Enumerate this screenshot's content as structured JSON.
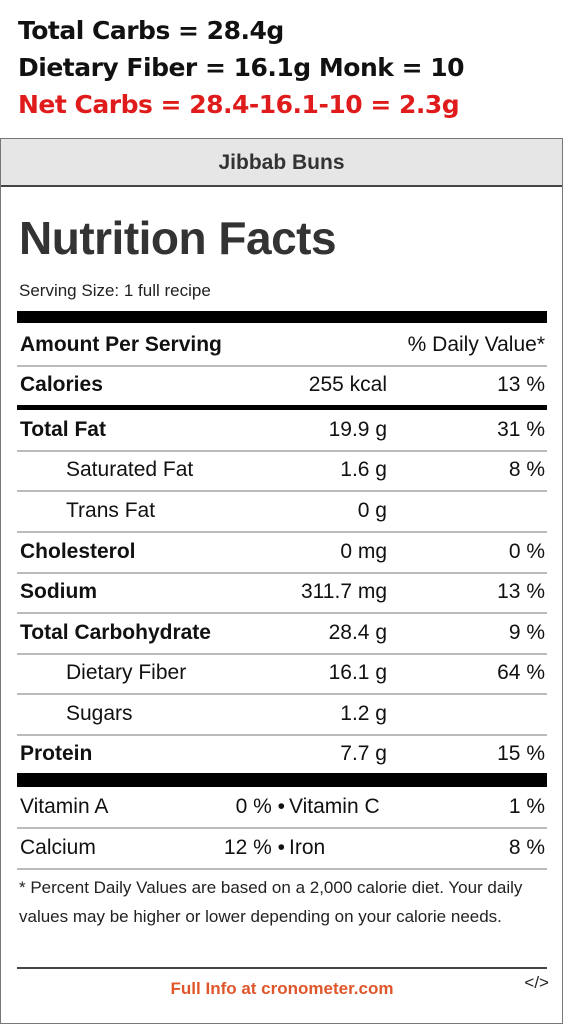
{
  "notes": {
    "line1": "Total Carbs = 28.4g",
    "line2": "Dietary Fiber = 16.1g Monk = 10",
    "line3": "Net Carbs = 28.4-16.1-10 = 2.3g",
    "highlight_color": "#e01b1b"
  },
  "card": {
    "recipe_name": "Jibbab Buns",
    "title": "Nutrition Facts",
    "serving_size": "Serving Size: 1 full recipe",
    "header": {
      "left": "Amount Per Serving",
      "right": "% Daily Value*"
    },
    "calories": {
      "name": "Calories",
      "amount": "255 kcal",
      "dv": "13 %"
    },
    "nutrients": [
      {
        "name": "Total Fat",
        "amount": "19.9 g",
        "dv": "31 %"
      },
      {
        "name": "Saturated Fat",
        "amount": "1.6 g",
        "dv": "8 %"
      },
      {
        "name": "Trans Fat",
        "amount": "0 g",
        "dv": ""
      },
      {
        "name": "Cholesterol",
        "amount": "0 mg",
        "dv": "0 %"
      },
      {
        "name": "Sodium",
        "amount": "311.7 mg",
        "dv": "13 %"
      },
      {
        "name": "Total Carbohydrate",
        "amount": "28.4 g",
        "dv": "9 %"
      },
      {
        "name": "Dietary Fiber",
        "amount": "16.1 g",
        "dv": "64 %"
      },
      {
        "name": "Sugars",
        "amount": "1.2 g",
        "dv": ""
      },
      {
        "name": "Protein",
        "amount": "7.7 g",
        "dv": "15 %"
      }
    ],
    "vitamins": [
      {
        "a_name": "Vitamin A",
        "a_val": "0 %",
        "b_name": "Vitamin C",
        "b_val": "1 %"
      },
      {
        "a_name": "Calcium",
        "a_val": "12 %",
        "b_name": "Iron",
        "b_val": "8 %"
      }
    ],
    "bullet": "•",
    "footnote": "* Percent Daily Values are based on a 2,000 calorie diet. Your daily values may be higher or lower depending on your calorie needs.",
    "full_info": "Full Info at cronometer.com",
    "embed": "</>",
    "link_color": "#e0562b"
  }
}
